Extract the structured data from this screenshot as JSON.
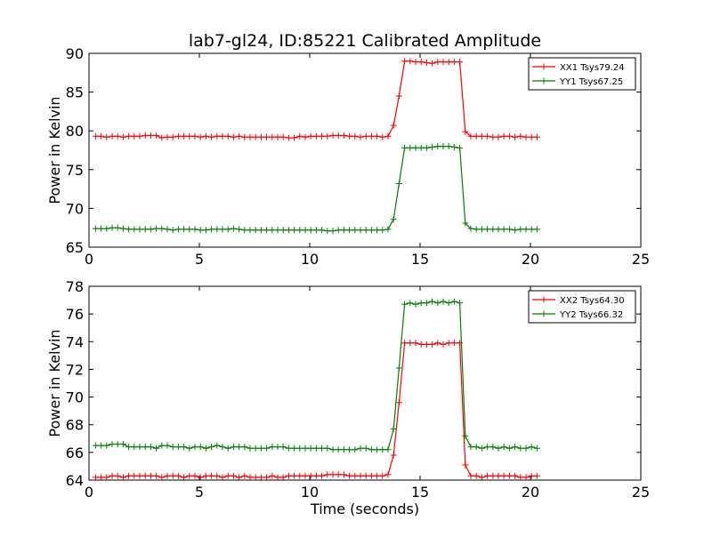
{
  "title": "lab7-gl24, ID:85221 Calibrated Amplitude",
  "colors": {
    "red": "#ff0000",
    "green": "#008000"
  },
  "chart_data": [
    {
      "type": "line",
      "xlabel": "",
      "ylabel": "Power in Kelvin",
      "xlim": [
        0,
        25
      ],
      "ylim": [
        65,
        90
      ],
      "xticks": [
        "0",
        "5",
        "10",
        "15",
        "20",
        "25"
      ],
      "yticks": [
        "65",
        "70",
        "75",
        "80",
        "85",
        "90"
      ],
      "grid": false,
      "legend_position": "top-right",
      "series": [
        {
          "name": "XX1 Tsys79.24",
          "color": "#ff0000",
          "x": [
            0.3,
            0.55,
            0.8,
            1.05,
            1.3,
            1.55,
            1.8,
            2.05,
            2.3,
            2.55,
            2.8,
            3.05,
            3.3,
            3.55,
            3.8,
            4.05,
            4.3,
            4.55,
            4.8,
            5.05,
            5.3,
            5.55,
            5.8,
            6.05,
            6.3,
            6.55,
            6.8,
            7.05,
            7.3,
            7.55,
            7.8,
            8.05,
            8.3,
            8.55,
            8.8,
            9.05,
            9.3,
            9.55,
            9.8,
            10.05,
            10.3,
            10.55,
            10.8,
            11.05,
            11.3,
            11.55,
            11.8,
            12.05,
            12.3,
            12.55,
            12.8,
            13.05,
            13.3,
            13.55,
            13.8,
            14.05,
            14.3,
            14.55,
            14.8,
            15.05,
            15.3,
            15.55,
            15.8,
            16.05,
            16.3,
            16.55,
            16.8,
            17.05,
            17.3,
            17.55,
            17.8,
            18.05,
            18.3,
            18.55,
            18.8,
            19.05,
            19.3,
            19.55,
            19.8,
            20.05,
            20.3
          ],
          "y": [
            79.3,
            79.3,
            79.2,
            79.3,
            79.3,
            79.2,
            79.3,
            79.3,
            79.3,
            79.4,
            79.4,
            79.4,
            79.1,
            79.2,
            79.2,
            79.3,
            79.3,
            79.3,
            79.3,
            79.2,
            79.3,
            79.2,
            79.3,
            79.3,
            79.3,
            79.2,
            79.3,
            79.2,
            79.2,
            79.2,
            79.2,
            79.2,
            79.2,
            79.2,
            79.2,
            79.1,
            79.1,
            79.3,
            79.2,
            79.3,
            79.3,
            79.3,
            79.3,
            79.4,
            79.4,
            79.4,
            79.3,
            79.3,
            79.2,
            79.3,
            79.3,
            79.3,
            79.2,
            79.3,
            80.7,
            84.5,
            89.0,
            89.0,
            88.9,
            88.9,
            88.8,
            88.7,
            88.9,
            88.9,
            88.9,
            88.9,
            88.9,
            79.9,
            79.3,
            79.3,
            79.3,
            79.3,
            79.2,
            79.2,
            79.3,
            79.3,
            79.2,
            79.3,
            79.2,
            79.2,
            79.2
          ]
        },
        {
          "name": "YY1 Tsys67.25",
          "color": "#008000",
          "x": [
            0.3,
            0.55,
            0.8,
            1.05,
            1.3,
            1.55,
            1.8,
            2.05,
            2.3,
            2.55,
            2.8,
            3.05,
            3.3,
            3.55,
            3.8,
            4.05,
            4.3,
            4.55,
            4.8,
            5.05,
            5.3,
            5.55,
            5.8,
            6.05,
            6.3,
            6.55,
            6.8,
            7.05,
            7.3,
            7.55,
            7.8,
            8.05,
            8.3,
            8.55,
            8.8,
            9.05,
            9.3,
            9.55,
            9.8,
            10.05,
            10.3,
            10.55,
            10.8,
            11.05,
            11.3,
            11.55,
            11.8,
            12.05,
            12.3,
            12.55,
            12.8,
            13.05,
            13.3,
            13.55,
            13.8,
            14.05,
            14.3,
            14.55,
            14.8,
            15.05,
            15.3,
            15.55,
            15.8,
            16.05,
            16.3,
            16.55,
            16.8,
            17.05,
            17.3,
            17.55,
            17.8,
            18.05,
            18.3,
            18.55,
            18.8,
            19.05,
            19.3,
            19.55,
            19.8,
            20.05,
            20.3
          ],
          "y": [
            67.4,
            67.4,
            67.4,
            67.5,
            67.5,
            67.4,
            67.3,
            67.3,
            67.3,
            67.3,
            67.3,
            67.4,
            67.4,
            67.3,
            67.2,
            67.3,
            67.3,
            67.3,
            67.3,
            67.2,
            67.2,
            67.3,
            67.3,
            67.3,
            67.3,
            67.4,
            67.3,
            67.2,
            67.2,
            67.2,
            67.2,
            67.2,
            67.2,
            67.2,
            67.2,
            67.2,
            67.2,
            67.2,
            67.2,
            67.2,
            67.2,
            67.2,
            67.1,
            67.1,
            67.2,
            67.2,
            67.2,
            67.2,
            67.2,
            67.2,
            67.2,
            67.2,
            67.2,
            67.3,
            68.6,
            73.2,
            77.8,
            77.8,
            77.8,
            77.8,
            77.8,
            77.9,
            78.0,
            78.0,
            78.0,
            77.9,
            77.8,
            68.1,
            67.4,
            67.3,
            67.3,
            67.3,
            67.3,
            67.3,
            67.3,
            67.3,
            67.2,
            67.3,
            67.3,
            67.3,
            67.3
          ]
        }
      ]
    },
    {
      "type": "line",
      "xlabel": "Time (seconds)",
      "ylabel": "Power in Kelvin",
      "xlim": [
        0,
        25
      ],
      "ylim": [
        64,
        78
      ],
      "xticks": [
        "0",
        "5",
        "10",
        "15",
        "20",
        "25"
      ],
      "yticks": [
        "64",
        "66",
        "68",
        "70",
        "72",
        "74",
        "76",
        "78"
      ],
      "grid": false,
      "legend_position": "top-right",
      "series": [
        {
          "name": "XX2 Tsys64.30",
          "color": "#ff0000",
          "x": [
            0.3,
            0.55,
            0.8,
            1.05,
            1.3,
            1.55,
            1.8,
            2.05,
            2.3,
            2.55,
            2.8,
            3.05,
            3.3,
            3.55,
            3.8,
            4.05,
            4.3,
            4.55,
            4.8,
            5.05,
            5.3,
            5.55,
            5.8,
            6.05,
            6.3,
            6.55,
            6.8,
            7.05,
            7.3,
            7.55,
            7.8,
            8.05,
            8.3,
            8.55,
            8.8,
            9.05,
            9.3,
            9.55,
            9.8,
            10.05,
            10.3,
            10.55,
            10.8,
            11.05,
            11.3,
            11.55,
            11.8,
            12.05,
            12.3,
            12.55,
            12.8,
            13.05,
            13.3,
            13.55,
            13.8,
            14.05,
            14.3,
            14.55,
            14.8,
            15.05,
            15.3,
            15.55,
            15.8,
            16.05,
            16.3,
            16.55,
            16.8,
            17.05,
            17.3,
            17.55,
            17.8,
            18.05,
            18.3,
            18.55,
            18.8,
            19.05,
            19.3,
            19.55,
            19.8,
            20.05,
            20.3
          ],
          "y": [
            64.2,
            64.2,
            64.2,
            64.3,
            64.3,
            64.2,
            64.3,
            64.3,
            64.3,
            64.3,
            64.3,
            64.3,
            64.2,
            64.3,
            64.3,
            64.3,
            64.2,
            64.3,
            64.3,
            64.2,
            64.3,
            64.3,
            64.3,
            64.2,
            64.3,
            64.3,
            64.2,
            64.3,
            64.2,
            64.2,
            64.2,
            64.2,
            64.3,
            64.2,
            64.2,
            64.3,
            64.3,
            64.3,
            64.3,
            64.3,
            64.3,
            64.3,
            64.4,
            64.4,
            64.4,
            64.4,
            64.3,
            64.3,
            64.3,
            64.3,
            64.3,
            64.3,
            64.3,
            64.4,
            65.8,
            69.6,
            73.9,
            73.9,
            73.9,
            73.8,
            73.8,
            73.8,
            73.9,
            73.8,
            73.9,
            73.9,
            73.9,
            65.1,
            64.3,
            64.3,
            64.2,
            64.3,
            64.3,
            64.3,
            64.3,
            64.3,
            64.3,
            64.2,
            64.2,
            64.3,
            64.3
          ]
        },
        {
          "name": "YY2 Tsys66.32",
          "color": "#008000",
          "x": [
            0.3,
            0.55,
            0.8,
            1.05,
            1.3,
            1.55,
            1.8,
            2.05,
            2.3,
            2.55,
            2.8,
            3.05,
            3.3,
            3.55,
            3.8,
            4.05,
            4.3,
            4.55,
            4.8,
            5.05,
            5.3,
            5.55,
            5.8,
            6.05,
            6.3,
            6.55,
            6.8,
            7.05,
            7.3,
            7.55,
            7.8,
            8.05,
            8.3,
            8.55,
            8.8,
            9.05,
            9.3,
            9.55,
            9.8,
            10.05,
            10.3,
            10.55,
            10.8,
            11.05,
            11.3,
            11.55,
            11.8,
            12.05,
            12.3,
            12.55,
            12.8,
            13.05,
            13.3,
            13.55,
            13.8,
            14.05,
            14.3,
            14.55,
            14.8,
            15.05,
            15.3,
            15.55,
            15.8,
            16.05,
            16.3,
            16.55,
            16.8,
            17.05,
            17.3,
            17.55,
            17.8,
            18.05,
            18.3,
            18.55,
            18.8,
            19.05,
            19.3,
            19.55,
            19.8,
            20.05,
            20.3
          ],
          "y": [
            66.5,
            66.5,
            66.5,
            66.6,
            66.6,
            66.6,
            66.4,
            66.4,
            66.4,
            66.4,
            66.4,
            66.3,
            66.5,
            66.5,
            66.4,
            66.4,
            66.4,
            66.3,
            66.4,
            66.4,
            66.3,
            66.4,
            66.5,
            66.4,
            66.3,
            66.4,
            66.4,
            66.4,
            66.3,
            66.3,
            66.3,
            66.3,
            66.4,
            66.4,
            66.4,
            66.3,
            66.3,
            66.3,
            66.3,
            66.3,
            66.3,
            66.3,
            66.3,
            66.2,
            66.2,
            66.2,
            66.2,
            66.2,
            66.3,
            66.3,
            66.2,
            66.2,
            66.2,
            66.2,
            67.7,
            72.1,
            76.7,
            76.8,
            76.7,
            76.8,
            76.8,
            76.9,
            76.8,
            76.9,
            76.8,
            76.9,
            76.8,
            67.2,
            66.4,
            66.4,
            66.3,
            66.4,
            66.4,
            66.3,
            66.4,
            66.3,
            66.4,
            66.3,
            66.3,
            66.4,
            66.3
          ]
        }
      ]
    }
  ]
}
